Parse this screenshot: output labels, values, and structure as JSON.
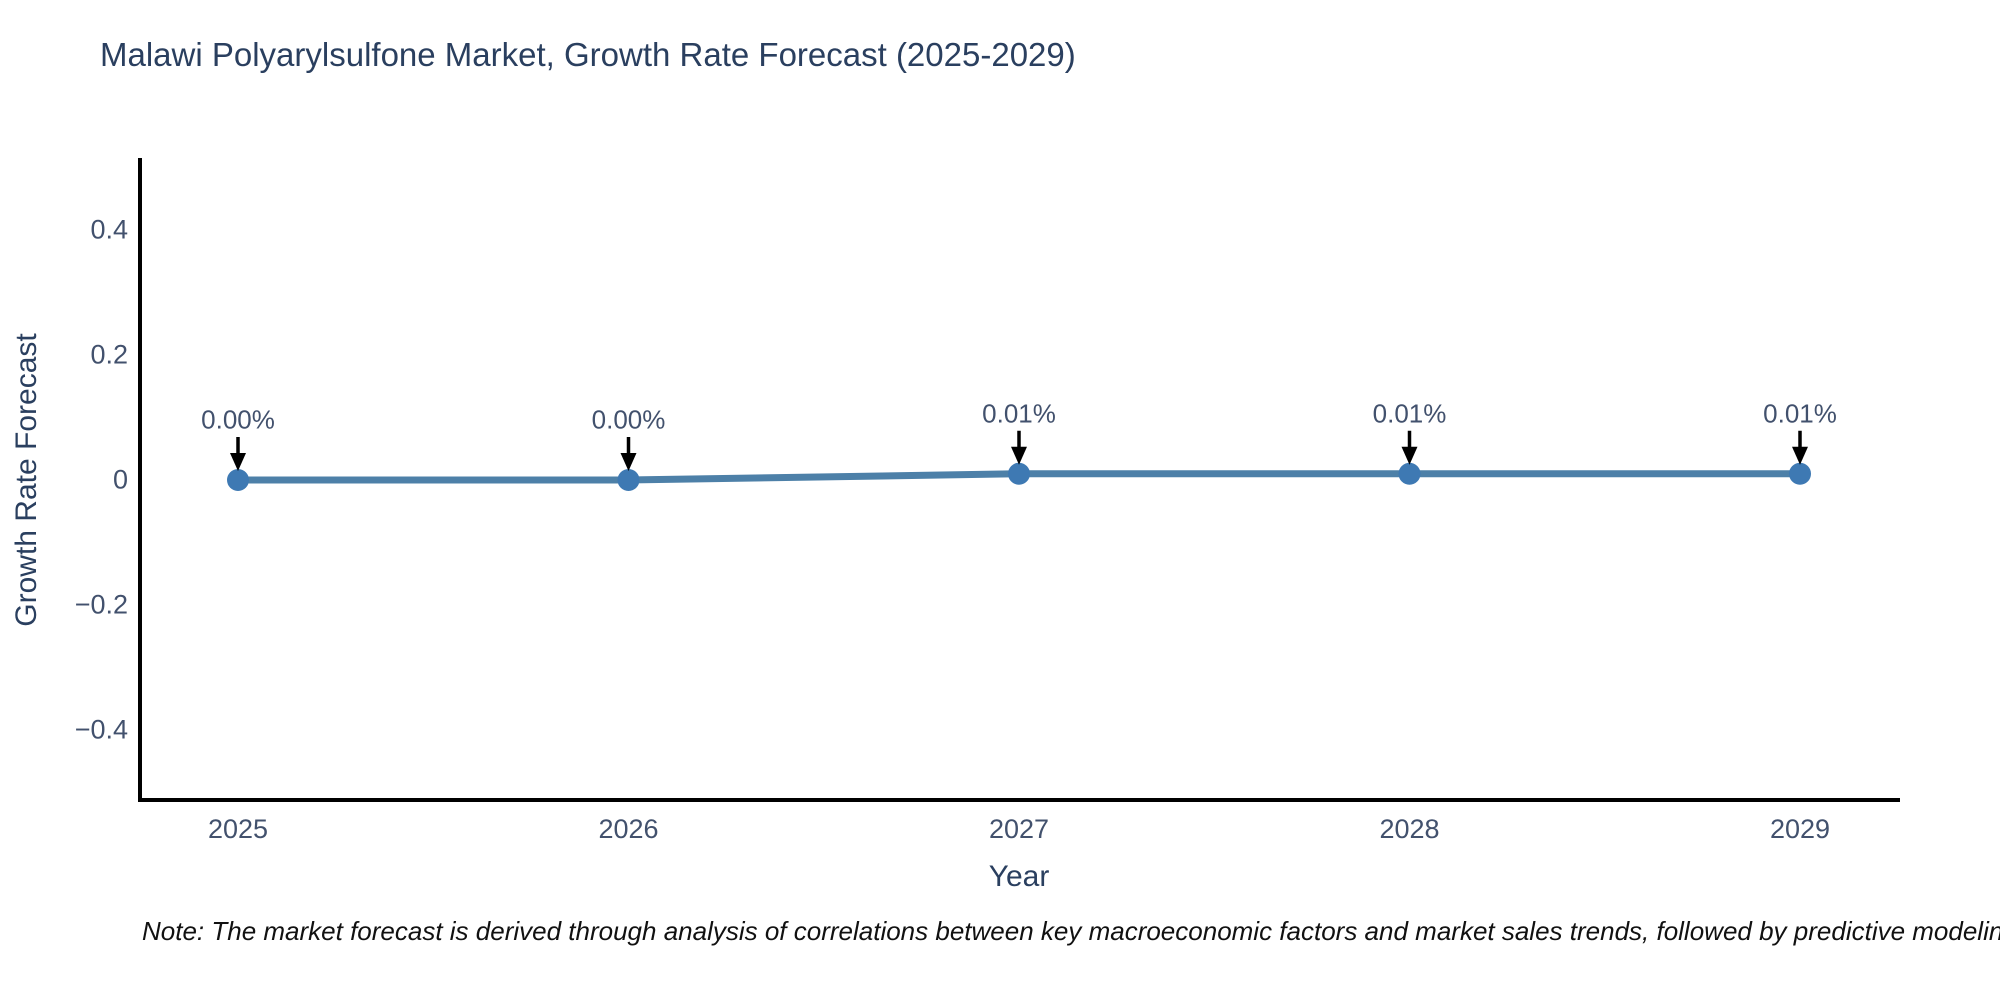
{
  "chart": {
    "title": "Malawi Polyarylsulfone Market, Growth Rate Forecast (2025-2029)",
    "x_axis_title": "Year",
    "y_axis_title": "Growth Rate Forecast",
    "note": "Note: The market forecast is derived through analysis of correlations between key macroeconomic factors and market sales trends, followed by predictive modeling to project future sa"
  },
  "chart_data": {
    "type": "line",
    "title": "Malawi Polyarylsulfone Market, Growth Rate Forecast (2025-2029)",
    "xlabel": "Year",
    "ylabel": "Growth Rate Forecast",
    "categories": [
      "2025",
      "2026",
      "2027",
      "2028",
      "2029"
    ],
    "values": [
      0.0,
      0.0,
      0.01,
      0.01,
      0.01
    ],
    "point_labels": [
      "0.00%",
      "0.00%",
      "0.01%",
      "0.01%",
      "0.01%"
    ],
    "y_ticks": [
      0.4,
      0.2,
      0,
      -0.2,
      -0.4
    ],
    "y_tick_labels": [
      "0.4",
      "0.2",
      "0",
      "−0.2",
      "−0.4"
    ],
    "ylim": [
      -0.5,
      0.5
    ],
    "grid": false,
    "legend": false,
    "annotation_arrows": "black-down-arrows",
    "colors": {
      "line": "#4d80a8",
      "marker": "#3e79b3",
      "arrow": "#000000",
      "axis": "#000000",
      "title_text": "#2a3f5f",
      "tick_text": "#42516d",
      "note_text": "#111111",
      "background": "#ffffff"
    }
  }
}
